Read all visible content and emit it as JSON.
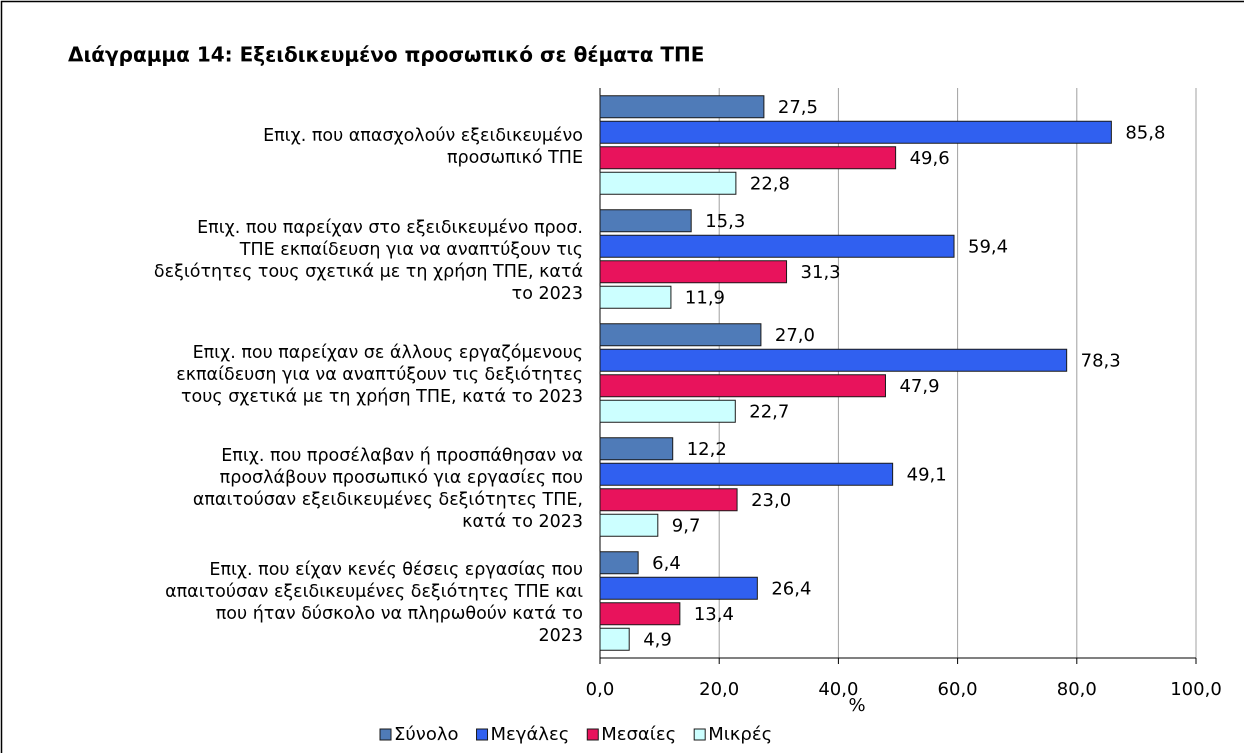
{
  "chart_data": {
    "type": "bar",
    "orientation": "horizontal",
    "title": "Διάγραμμα 14: Εξειδικευμένο προσωπικό σε θέματα ΤΠΕ",
    "x_label": "%",
    "categories": [
      "Επιχ. που απασχολούν εξειδικευμένο\nπροσωπικό ΤΠΕ",
      "Επιχ. που παρείχαν στο εξειδικευμένο προσ.\nΤΠΕ εκπαίδευση για να αναπτύξουν τις\nδεξιότητες τους σχετικά με τη χρήση ΤΠΕ, κατά\nτο 2023",
      "Επιχ. που παρείχαν σε άλλους εργαζόμενους\nεκπαίδευση για να αναπτύξουν τις δεξιότητες\nτους σχετικά με τη χρήση ΤΠΕ, κατά το 2023",
      "Επιχ. που προσέλαβαν ή προσπάθησαν να\nπροσλάβουν προσωπικό για εργασίες που\nαπαιτούσαν εξειδικευμένες δεξιότητες ΤΠΕ,\nκατά το 2023",
      "Επιχ. που είχαν κενές θέσεις εργασίας που\nαπαιτούσαν εξειδικευμένες δεξιότητες ΤΠΕ και\nπου ήταν δύσκολο να πληρωθούν κατά το\n2023"
    ],
    "series": [
      {
        "name": "Σύνολο",
        "color": "#4f7bb8",
        "values": [
          27.5,
          15.3,
          27.0,
          12.2,
          6.4
        ],
        "value_labels": [
          "27,5",
          "15,3",
          "27,0",
          "12,2",
          "6,4"
        ]
      },
      {
        "name": "Μεγάλες",
        "color": "#3060f0",
        "values": [
          85.8,
          59.4,
          78.3,
          49.1,
          26.4
        ],
        "value_labels": [
          "85,8",
          "59,4",
          "78,3",
          "49,1",
          "26,4"
        ]
      },
      {
        "name": "Μεσαίες",
        "color": "#e8135c",
        "values": [
          49.6,
          31.3,
          47.9,
          23.0,
          13.4
        ],
        "value_labels": [
          "49,6",
          "31,3",
          "47,9",
          "23,0",
          "13,4"
        ]
      },
      {
        "name": "Μικρές",
        "color": "#ccffff",
        "values": [
          22.8,
          11.9,
          22.7,
          9.7,
          4.9
        ],
        "value_labels": [
          "22,8",
          "11,9",
          "22,7",
          "9,7",
          "4,9"
        ]
      }
    ],
    "xlim": [
      0,
      100
    ],
    "xticks": [
      {
        "value": 0,
        "label": "0,0"
      },
      {
        "value": 20,
        "label": "20,0"
      },
      {
        "value": 40,
        "label": "40,0"
      },
      {
        "value": 60,
        "label": "60,0"
      },
      {
        "value": 80,
        "label": "80,0"
      },
      {
        "value": 100,
        "label": "100,0"
      }
    ],
    "grid": true,
    "legend": "bottom"
  }
}
